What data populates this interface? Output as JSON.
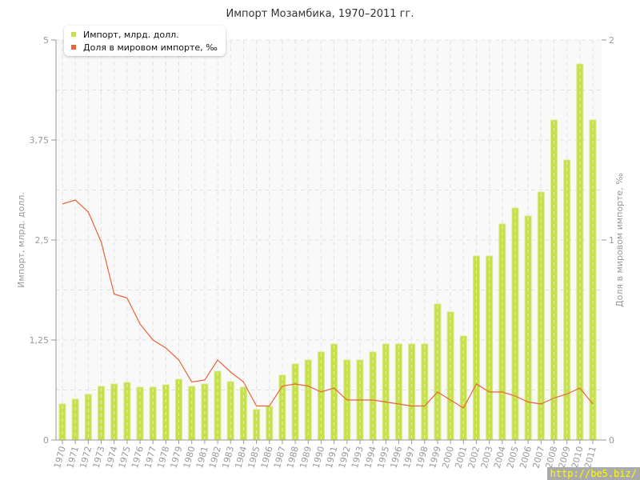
{
  "chart_data": {
    "type": "bar+line",
    "title": "Импорт Мозамбика, 1970–2011 гг.",
    "ylabel": "Импорт, млрд. долл.",
    "y2label": "Доля в мировом импорте, ‰",
    "ylim": [
      0,
      5
    ],
    "y2lim": [
      0,
      2
    ],
    "yticks": [
      "0",
      "1,25",
      "2,5",
      "3,75",
      "5"
    ],
    "y2ticks": [
      "0",
      "1",
      "2"
    ],
    "grid": true,
    "legend_position": "top-left",
    "categories": [
      "1970",
      "1971",
      "1972",
      "1973",
      "1974",
      "1975",
      "1976",
      "1977",
      "1978",
      "1979",
      "1980",
      "1981",
      "1982",
      "1983",
      "1984",
      "1985",
      "1986",
      "1987",
      "1988",
      "1989",
      "1990",
      "1991",
      "1992",
      "1993",
      "1994",
      "1995",
      "1996",
      "1997",
      "1998",
      "1999",
      "2000",
      "2001",
      "2002",
      "2003",
      "2004",
      "2005",
      "2006",
      "2007",
      "2008",
      "2009",
      "2010",
      "2011"
    ],
    "series": [
      {
        "name": "Импорт, млрд. долл.",
        "type": "bar",
        "axis": "left",
        "color": "#c5e04a",
        "values": [
          0.45,
          0.51,
          0.57,
          0.67,
          0.7,
          0.72,
          0.66,
          0.66,
          0.69,
          0.76,
          0.67,
          0.7,
          0.86,
          0.73,
          0.66,
          0.38,
          0.42,
          0.81,
          0.95,
          1.0,
          1.1,
          1.2,
          1.0,
          1.0,
          1.1,
          1.2,
          1.2,
          1.2,
          1.2,
          1.7,
          1.6,
          1.3,
          2.3,
          2.3,
          2.7,
          2.9,
          2.8,
          3.1,
          4.0,
          3.5,
          4.7,
          4.0
        ]
      },
      {
        "name": "Доля в мировом импорте, ‰",
        "type": "line",
        "axis": "right",
        "color": "#e8643a",
        "values": [
          1.18,
          1.2,
          1.14,
          0.99,
          0.73,
          0.71,
          0.58,
          0.5,
          0.46,
          0.4,
          0.29,
          0.3,
          0.4,
          0.34,
          0.29,
          0.17,
          0.17,
          0.27,
          0.28,
          0.27,
          0.24,
          0.26,
          0.2,
          0.2,
          0.2,
          0.19,
          0.18,
          0.17,
          0.17,
          0.24,
          0.2,
          0.16,
          0.28,
          0.24,
          0.24,
          0.22,
          0.19,
          0.18,
          0.21,
          0.23,
          0.26,
          0.18
        ]
      }
    ]
  },
  "watermark": "http://be5.biz/"
}
